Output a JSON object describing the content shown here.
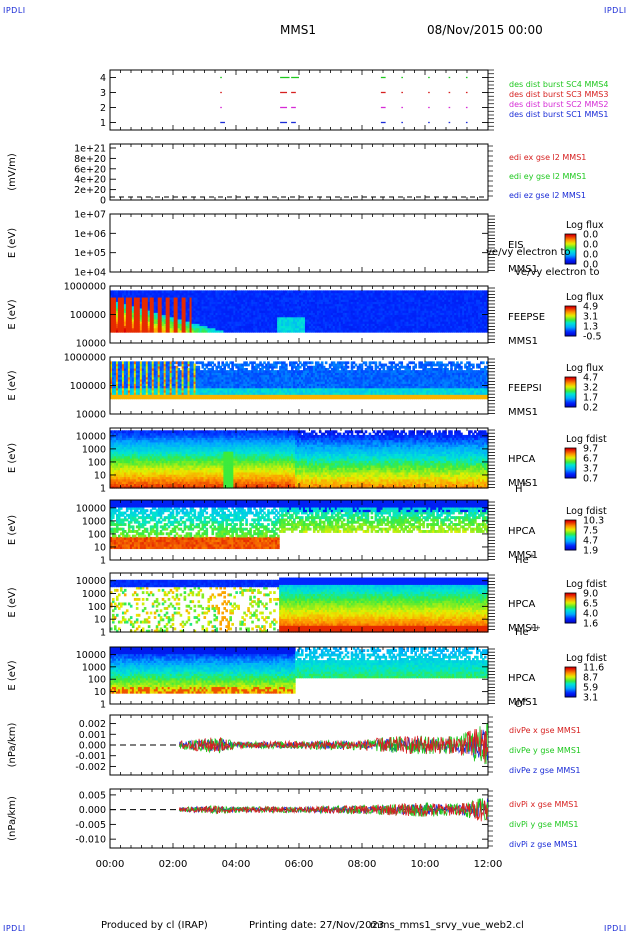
{
  "header": {
    "corner_label": "IPDLI",
    "spacecraft": "MMS1",
    "date_time": "08/Nov/2015 00:00"
  },
  "footer": {
    "produced_by": "Produced by cl (IRAP)",
    "printing_date": "Printing date: 27/Nov/2023",
    "filename": "mms_mms1_srvy_vue_web2.cl"
  },
  "colors": {
    "blue": "#1a2bd6",
    "magenta": "#d62bd6",
    "red": "#d62020",
    "green": "#1ec81e"
  },
  "chart_data": [
    {
      "type": "line",
      "panel": "burst",
      "x_range": [
        "00:00",
        "12:00"
      ],
      "ylim": [
        0.5,
        4.5
      ],
      "y_ticks": [
        "1",
        "2",
        "3",
        "4"
      ],
      "series": [
        {
          "name": "des dist burst SC1 MMS1",
          "level": 1,
          "color": "#1a2bd6",
          "intervals_h": [
            [
              3.5,
              3.65
            ],
            [
              5.4,
              5.62
            ],
            [
              5.75,
              5.9
            ],
            [
              8.6,
              8.75
            ],
            [
              9.25,
              9.3
            ],
            [
              10.1,
              10.15
            ],
            [
              10.75,
              10.8
            ],
            [
              11.3,
              11.35
            ]
          ]
        },
        {
          "name": "des dist burst SC2 MMS2",
          "level": 2,
          "color": "#d62bd6",
          "intervals_h": [
            [
              3.5,
              3.55
            ],
            [
              5.4,
              5.62
            ],
            [
              5.75,
              5.9
            ],
            [
              8.6,
              8.75
            ],
            [
              9.25,
              9.3
            ],
            [
              10.1,
              10.15
            ],
            [
              10.75,
              10.8
            ],
            [
              11.3,
              11.35
            ]
          ]
        },
        {
          "name": "des dist burst SC3 MMS3",
          "level": 3,
          "color": "#d62020",
          "intervals_h": [
            [
              3.5,
              3.55
            ],
            [
              5.4,
              5.62
            ],
            [
              5.75,
              5.9
            ],
            [
              8.6,
              8.75
            ],
            [
              9.25,
              9.3
            ],
            [
              10.1,
              10.15
            ],
            [
              10.75,
              10.8
            ],
            [
              11.3,
              11.35
            ]
          ]
        },
        {
          "name": "des dist burst SC4 MMS4",
          "level": 4,
          "color": "#1ec81e",
          "intervals_h": [
            [
              3.5,
              3.55
            ],
            [
              5.4,
              5.7
            ],
            [
              5.75,
              6.0
            ],
            [
              8.6,
              8.75
            ],
            [
              9.25,
              9.3
            ],
            [
              10.1,
              10.15
            ],
            [
              10.75,
              10.8
            ],
            [
              11.3,
              11.35
            ]
          ]
        }
      ]
    },
    {
      "type": "line",
      "panel": "edi",
      "ylabel": "(mV/m)",
      "y_ticks": [
        "0",
        "2e+20",
        "4e+20",
        "6e+20",
        "8e+20",
        "1e+21"
      ],
      "ylim": [
        0,
        1e+21
      ],
      "series": [
        {
          "name": "edi ex gse l2 MMS1",
          "color": "#d62020",
          "values": []
        },
        {
          "name": "edi ey gse l2 MMS1",
          "color": "#1ec81e",
          "values": []
        },
        {
          "name": "edi ez gse l2 MMS1",
          "color": "#1a2bd6",
          "values": []
        }
      ],
      "reference_line": 0
    },
    {
      "type": "heatmap",
      "panel": "eis",
      "ylabel": "E (eV)",
      "y_ticks": [
        "1e+04",
        "1e+05",
        "1e+06",
        "1e+07"
      ],
      "ylim": [
        10000.0,
        10000000.0
      ],
      "scale": "log",
      "instrument": "EIS",
      "species": "ve/vy electron to",
      "spacecraft": "MMS1",
      "colorbar_title": "Log flux",
      "colorbar_ticks": [
        "0.0",
        "0.0",
        "0.0",
        "0.0"
      ],
      "data_present": false
    },
    {
      "type": "heatmap",
      "panel": "feepse",
      "ylabel": "E (eV)",
      "y_ticks": [
        "10000",
        "100000",
        "1000000"
      ],
      "ylim": [
        10000,
        1000000
      ],
      "scale": "log",
      "instrument": "FEEPSE",
      "spacecraft": "MMS1",
      "colorbar_title": "Log flux",
      "colorbar_ticks": [
        "4.9",
        "3.1",
        "1.3",
        "-0.5"
      ],
      "cbar_range": [
        -0.5,
        4.9
      ],
      "data_start_h": 0.0
    },
    {
      "type": "heatmap",
      "panel": "feepsi",
      "ylabel": "E (eV)",
      "y_ticks": [
        "10000",
        "100000",
        "1000000"
      ],
      "ylim": [
        10000,
        1000000
      ],
      "scale": "log",
      "instrument": "FEEPSI",
      "spacecraft": "MMS1",
      "colorbar_title": "Log flux",
      "colorbar_ticks": [
        "4.7",
        "3.2",
        "1.7",
        "0.2"
      ],
      "cbar_range": [
        0.2,
        4.7
      ],
      "data_start_h": 0.0
    },
    {
      "type": "heatmap",
      "panel": "hpca_h",
      "ylabel": "E (eV)",
      "y_ticks": [
        "1",
        "10",
        "100",
        "1000",
        "10000"
      ],
      "ylim": [
        1,
        40000
      ],
      "scale": "log",
      "instrument": "HPCA",
      "spacecraft": "MMS1",
      "species": "H",
      "species_sup": "+",
      "colorbar_title": "Log fdist",
      "colorbar_ticks": [
        "9.7",
        "6.7",
        "3.7",
        "0.7"
      ],
      "cbar_range": [
        0.7,
        9.7
      ],
      "data_start_h": 0.0
    },
    {
      "type": "heatmap",
      "panel": "hpca_he",
      "ylabel": "E (eV)",
      "y_ticks": [
        "1",
        "10",
        "100",
        "1000",
        "10000"
      ],
      "ylim": [
        1,
        40000
      ],
      "scale": "log",
      "instrument": "HPCA",
      "spacecraft": "MMS1",
      "species": "He",
      "species_sup": "+",
      "colorbar_title": "Log fdist",
      "colorbar_ticks": [
        "10.3",
        "7.5",
        "4.7",
        "1.9"
      ],
      "cbar_range": [
        1.9,
        10.3
      ],
      "data_start_h": 0.0
    },
    {
      "type": "heatmap",
      "panel": "hpca_hepp",
      "ylabel": "E (eV)",
      "y_ticks": [
        "1",
        "10",
        "100",
        "1000",
        "10000"
      ],
      "ylim": [
        1,
        40000
      ],
      "scale": "log",
      "instrument": "HPCA",
      "spacecraft": "MMS1",
      "species": "He",
      "species_sup": "++",
      "colorbar_title": "Log fdist",
      "colorbar_ticks": [
        "9.0",
        "6.5",
        "4.0",
        "1.6"
      ],
      "cbar_range": [
        1.6,
        9.0
      ],
      "data_start_h": 0.0
    },
    {
      "type": "heatmap",
      "panel": "hpca_o",
      "ylabel": "E (eV)",
      "y_ticks": [
        "1",
        "10",
        "100",
        "1000",
        "10000"
      ],
      "ylim": [
        1,
        40000
      ],
      "scale": "log",
      "instrument": "HPCA",
      "spacecraft": "MMS1",
      "species": "O",
      "species_sup": "+",
      "colorbar_title": "Log fdist",
      "colorbar_ticks": [
        "11.6",
        "8.7",
        "5.9",
        "3.1"
      ],
      "cbar_range": [
        3.1,
        11.6
      ],
      "data_start_h": 0.0
    },
    {
      "type": "line",
      "panel": "divpe",
      "ylabel": "(nPa/km)",
      "y_ticks": [
        "-0.002",
        "-0.001",
        "0.000",
        "0.001",
        "0.002"
      ],
      "ylim": [
        -0.0028,
        0.0028
      ],
      "reference_line": 0,
      "data_start_h": 2.2,
      "series": [
        {
          "name": "divPe x gse MMS1",
          "color": "#d62020"
        },
        {
          "name": "divPe y gse MMS1",
          "color": "#1ec81e"
        },
        {
          "name": "divPe z gse MMS1",
          "color": "#1a2bd6"
        }
      ],
      "amplitude_envelope": [
        [
          2.2,
          0.0004
        ],
        [
          3.5,
          0.0008
        ],
        [
          4.0,
          0.0003
        ],
        [
          6.0,
          0.0004
        ],
        [
          8.0,
          0.0005
        ],
        [
          9.0,
          0.0008
        ],
        [
          10.0,
          0.0009
        ],
        [
          11.0,
          0.0008
        ],
        [
          11.5,
          0.0015
        ],
        [
          12.0,
          0.0022
        ]
      ]
    },
    {
      "type": "line",
      "panel": "divpi",
      "ylabel": "(nPa/km)",
      "y_ticks": [
        "-0.010",
        "-0.005",
        "0.000",
        "0.005"
      ],
      "ylim": [
        -0.013,
        0.007
      ],
      "reference_line": 0,
      "data_start_h": 2.2,
      "series": [
        {
          "name": "divPi x gse MMS1",
          "color": "#d62020"
        },
        {
          "name": "divPi y gse MMS1",
          "color": "#1ec81e"
        },
        {
          "name": "divPi z gse MMS1",
          "color": "#1a2bd6"
        }
      ],
      "amplitude_envelope": [
        [
          2.2,
          0.0008
        ],
        [
          3.5,
          0.0015
        ],
        [
          4.0,
          0.001
        ],
        [
          6.0,
          0.001
        ],
        [
          8.0,
          0.0015
        ],
        [
          9.0,
          0.002
        ],
        [
          10.0,
          0.0025
        ],
        [
          11.0,
          0.002
        ],
        [
          11.5,
          0.003
        ],
        [
          12.0,
          0.005
        ]
      ]
    }
  ],
  "x_axis": {
    "ticks": [
      "00:00",
      "02:00",
      "04:00",
      "06:00",
      "08:00",
      "10:00",
      "12:00"
    ]
  }
}
